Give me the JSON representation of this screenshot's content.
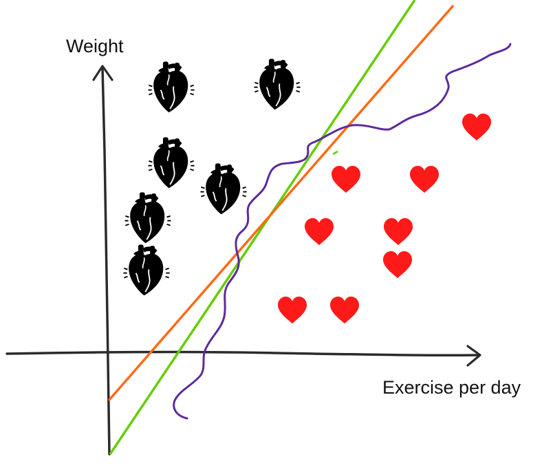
{
  "axes": {
    "y_label": "Weight",
    "x_label": "Exercise per day"
  },
  "colors": {
    "axis": "#2b2b2b",
    "unhealthy": "#000000",
    "healthy": "#ff1a1a",
    "line_green": "#66cc00",
    "line_orange": "#ff6a13",
    "curve_purple": "#5b2a9e"
  },
  "legend": {
    "unhealthy_icon": "anatomical-heart-icon",
    "healthy_icon": "red-heart-icon"
  },
  "unhealthy_count": 6,
  "healthy_count": 8
}
